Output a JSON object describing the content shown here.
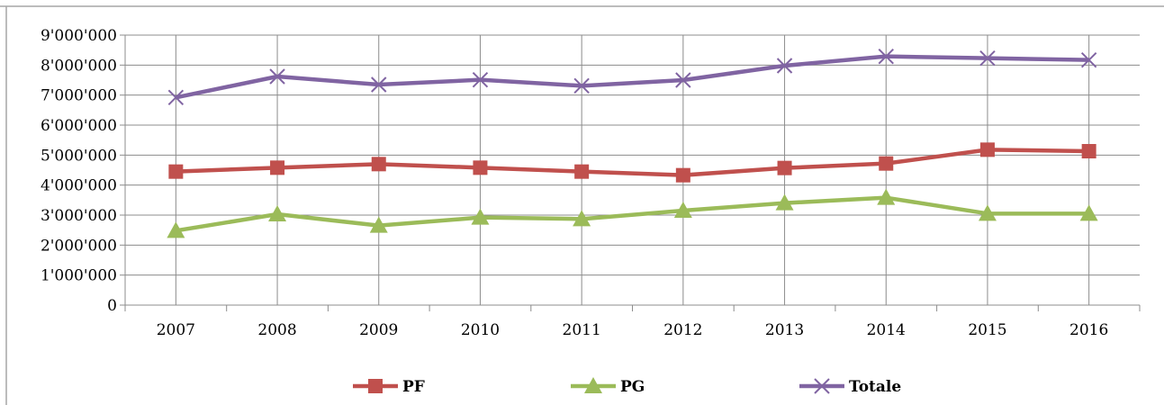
{
  "chart_data": {
    "type": "line",
    "categories": [
      "2007",
      "2008",
      "2009",
      "2010",
      "2011",
      "2012",
      "2013",
      "2014",
      "2015",
      "2016"
    ],
    "y_ticks": [
      "0",
      "1'000'000",
      "2'000'000",
      "3'000'000",
      "4'000'000",
      "5'000'000",
      "6'000'000",
      "7'000'000",
      "8'000'000",
      "9'000'000"
    ],
    "ylim": [
      0,
      9000000
    ],
    "grid": true,
    "legend_position": "bottom",
    "series": [
      {
        "name": "PF",
        "color": "#c0504d",
        "marker": "square",
        "values": [
          4450000,
          4580000,
          4700000,
          4580000,
          4450000,
          4330000,
          4570000,
          4720000,
          5180000,
          5130000
        ]
      },
      {
        "name": "PG",
        "color": "#9bbb59",
        "marker": "triangle",
        "values": [
          2480000,
          3030000,
          2650000,
          2920000,
          2870000,
          3150000,
          3400000,
          3580000,
          3050000,
          3050000
        ]
      },
      {
        "name": "Totale",
        "color": "#8064a2",
        "marker": "x",
        "values": [
          6920000,
          7620000,
          7350000,
          7510000,
          7310000,
          7500000,
          7980000,
          8290000,
          8230000,
          8170000
        ]
      }
    ]
  }
}
